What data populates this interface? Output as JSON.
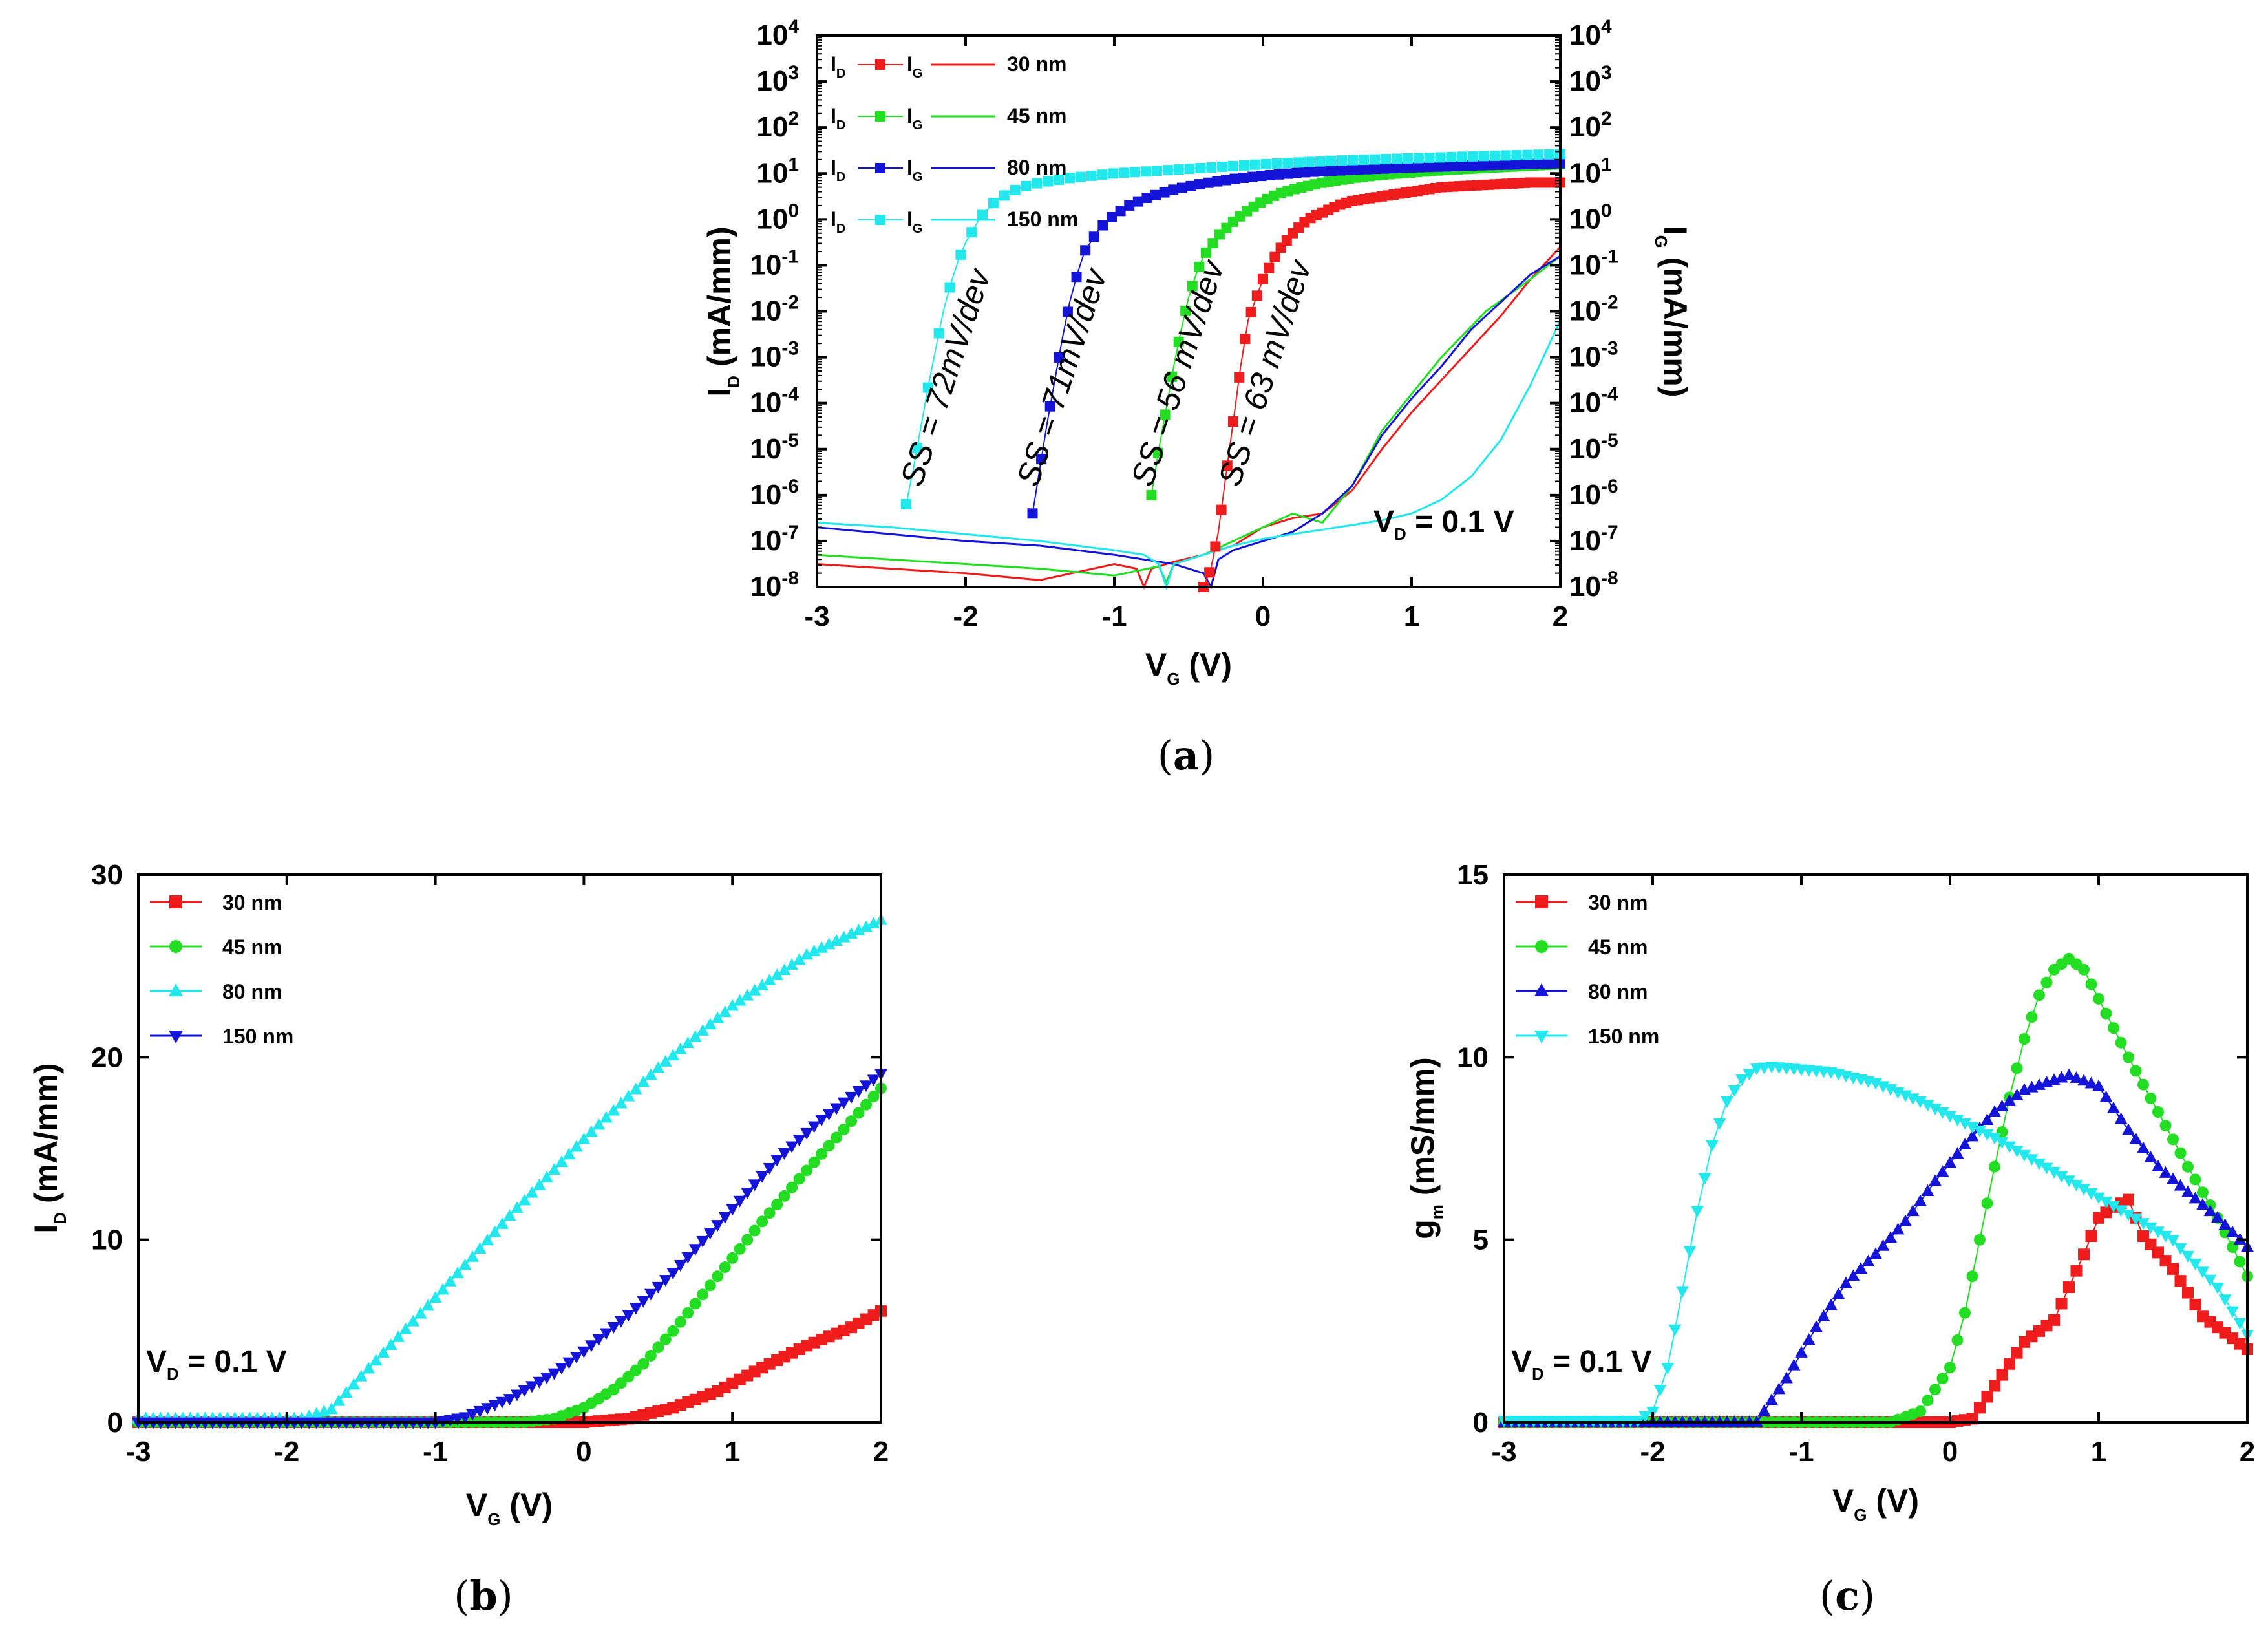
{
  "colors": {
    "red": "#ee1c1c",
    "green": "#22dd22",
    "blue": "#1414d8",
    "cyan": "#22e8ee"
  },
  "chart_data": [
    {
      "id": "a",
      "caption": "a",
      "type": "line",
      "scale": "log",
      "xlabel_main": "V",
      "xlabel_sub": "G",
      "xlabel_unit": " (V)",
      "ylabel_main": "I",
      "ylabel_sub": "D",
      "ylabel_unit": " (mA/mm)",
      "y2label_main": "I",
      "y2label_sub": "G",
      "y2label_unit": " (mA/mm)",
      "xlim": [
        -3,
        2
      ],
      "ylim_exp": [
        -8,
        4
      ],
      "xticks": [
        "-3",
        "-2",
        "-1",
        "0",
        "1",
        "2"
      ],
      "yticks_exp": [
        "-8",
        "-7",
        "-6",
        "-5",
        "-4",
        "-3",
        "-2",
        "-1",
        "0",
        "1",
        "2",
        "3",
        "4"
      ],
      "ytick_base": "10",
      "legend": {
        "id_main": "I",
        "id_sub": "D",
        "ig_main": "I",
        "ig_sub": "G",
        "entries": [
          "30 nm",
          "45 nm",
          "80 nm",
          "150 nm"
        ]
      },
      "annotation": {
        "main": "V",
        "sub": "D",
        "rest": " = 0.1 V"
      },
      "ss_labels": [
        "SS = 72mV/dev",
        "SS = 71mV/dev",
        "SS = 56 mV/dev",
        "SS = 63 mV/dev"
      ],
      "series_id": [
        {
          "name": "30 nm",
          "color": "red",
          "x": [
            -0.4,
            -0.35,
            -0.3,
            -0.25,
            -0.2,
            -0.15,
            -0.1,
            0.0,
            0.1,
            0.2,
            0.3,
            0.4,
            0.5,
            0.6,
            0.8,
            1.0,
            1.2,
            1.5,
            1.8,
            2.0
          ],
          "logy": [
            -8.0,
            -7.6,
            -6.8,
            -5.6,
            -4.4,
            -3.2,
            -2.2,
            -1.3,
            -0.7,
            -0.3,
            0.0,
            0.15,
            0.3,
            0.4,
            0.5,
            0.6,
            0.7,
            0.75,
            0.8,
            0.8
          ]
        },
        {
          "name": "45 nm",
          "color": "green",
          "x": [
            -0.75,
            -0.7,
            -0.65,
            -0.6,
            -0.55,
            -0.5,
            -0.45,
            -0.4,
            -0.3,
            -0.2,
            -0.1,
            0.0,
            0.1,
            0.2,
            0.4,
            0.6,
            0.8,
            1.0,
            1.2,
            1.5,
            2.0
          ],
          "logy": [
            -6.0,
            -5.0,
            -4.1,
            -3.2,
            -2.4,
            -1.7,
            -1.2,
            -0.8,
            -0.35,
            -0.05,
            0.2,
            0.4,
            0.55,
            0.65,
            0.8,
            0.9,
            0.97,
            1.02,
            1.07,
            1.12,
            1.2
          ]
        },
        {
          "name": "80 nm",
          "color": "blue",
          "x": [
            -1.55,
            -1.5,
            -1.45,
            -1.4,
            -1.35,
            -1.3,
            -1.25,
            -1.2,
            -1.1,
            -1.0,
            -0.9,
            -0.8,
            -0.6,
            -0.4,
            -0.2,
            0.0,
            0.3,
            0.6,
            1.0,
            1.5,
            2.0
          ],
          "logy": [
            -6.4,
            -5.4,
            -4.4,
            -3.5,
            -2.6,
            -1.8,
            -1.2,
            -0.7,
            -0.2,
            0.1,
            0.3,
            0.45,
            0.65,
            0.78,
            0.88,
            0.95,
            1.03,
            1.08,
            1.13,
            1.18,
            1.22
          ]
        },
        {
          "name": "150 nm",
          "color": "cyan",
          "x": [
            -2.4,
            -2.35,
            -2.3,
            -2.25,
            -2.2,
            -2.15,
            -2.1,
            -2.05,
            -2.0,
            -1.9,
            -1.8,
            -1.7,
            -1.6,
            -1.5,
            -1.3,
            -1.0,
            -0.5,
            0.0,
            0.5,
            1.0,
            1.5,
            2.0
          ],
          "logy": [
            -6.2,
            -5.4,
            -4.5,
            -3.6,
            -2.8,
            -2.0,
            -1.4,
            -0.9,
            -0.5,
            0.05,
            0.4,
            0.6,
            0.72,
            0.8,
            0.9,
            1.0,
            1.1,
            1.2,
            1.28,
            1.33,
            1.38,
            1.42
          ]
        }
      ],
      "series_ig": [
        {
          "name": "30 nm",
          "color": "red",
          "x": [
            -3.0,
            -2.5,
            -2.0,
            -1.5,
            -1.0,
            -0.85,
            -0.8,
            -0.75,
            -0.6,
            -0.4,
            -0.2,
            0.0,
            0.2,
            0.4,
            0.6,
            0.8,
            1.0,
            1.2,
            1.4,
            1.6,
            1.8,
            2.0
          ],
          "logy": [
            -7.5,
            -7.6,
            -7.7,
            -7.85,
            -7.5,
            -7.6,
            -8.0,
            -7.6,
            -7.45,
            -7.3,
            -7.1,
            -6.7,
            -6.5,
            -6.4,
            -5.9,
            -5.0,
            -4.2,
            -3.5,
            -2.8,
            -2.1,
            -1.3,
            -0.6
          ]
        },
        {
          "name": "45 nm",
          "color": "green",
          "x": [
            -3.0,
            -2.5,
            -2.0,
            -1.5,
            -1.0,
            -0.7,
            -0.65,
            -0.6,
            -0.4,
            -0.2,
            0.0,
            0.2,
            0.4,
            0.6,
            0.8,
            1.0,
            1.2,
            1.5,
            1.8,
            2.0
          ],
          "logy": [
            -7.3,
            -7.4,
            -7.5,
            -7.6,
            -7.75,
            -7.55,
            -7.9,
            -7.5,
            -7.3,
            -7.0,
            -6.7,
            -6.4,
            -6.6,
            -5.8,
            -4.6,
            -3.8,
            -3.0,
            -2.0,
            -1.3,
            -0.8
          ]
        },
        {
          "name": "80 nm",
          "color": "blue",
          "x": [
            -3.0,
            -2.5,
            -2.0,
            -1.5,
            -1.0,
            -0.6,
            -0.4,
            -0.35,
            -0.3,
            -0.2,
            0.0,
            0.2,
            0.4,
            0.6,
            0.8,
            1.0,
            1.2,
            1.4,
            1.6,
            1.8,
            2.0
          ],
          "logy": [
            -6.7,
            -6.85,
            -7.0,
            -7.1,
            -7.3,
            -7.5,
            -7.7,
            -8.0,
            -7.4,
            -7.2,
            -7.0,
            -6.8,
            -6.4,
            -5.8,
            -4.7,
            -3.9,
            -3.2,
            -2.4,
            -1.8,
            -1.2,
            -0.8
          ]
        },
        {
          "name": "150 nm",
          "color": "cyan",
          "x": [
            -3.0,
            -2.5,
            -2.0,
            -1.5,
            -1.0,
            -0.8,
            -0.7,
            -0.65,
            -0.6,
            -0.4,
            -0.2,
            0.0,
            0.2,
            0.5,
            0.8,
            1.0,
            1.2,
            1.4,
            1.6,
            1.8,
            2.0
          ],
          "logy": [
            -6.6,
            -6.7,
            -6.85,
            -7.0,
            -7.2,
            -7.3,
            -7.5,
            -8.0,
            -7.5,
            -7.3,
            -7.1,
            -6.95,
            -6.85,
            -6.7,
            -6.55,
            -6.4,
            -6.1,
            -5.6,
            -4.8,
            -3.6,
            -2.2
          ]
        }
      ]
    },
    {
      "id": "b",
      "caption": "b",
      "type": "line",
      "xlabel_main": "V",
      "xlabel_sub": "G",
      "xlabel_unit": " (V)",
      "ylabel_main": "I",
      "ylabel_sub": "D",
      "ylabel_unit": " (mA/mm)",
      "xlim": [
        -3,
        2
      ],
      "ylim": [
        0,
        30
      ],
      "xticks": [
        "-3",
        "-2",
        "-1",
        "0",
        "1",
        "2"
      ],
      "yticks": [
        "0",
        "10",
        "20",
        "30"
      ],
      "annotation": {
        "main": "V",
        "sub": "D",
        "rest": " = 0.1 V"
      },
      "series": [
        {
          "name": "30 nm",
          "color": "red",
          "marker": "square",
          "x": [
            -3.0,
            0.0,
            0.3,
            0.6,
            0.9,
            1.2,
            1.5,
            1.8,
            2.0
          ],
          "y": [
            0,
            0,
            0.2,
            0.8,
            1.7,
            3.0,
            4.2,
            5.2,
            6.1
          ]
        },
        {
          "name": "45 nm",
          "color": "green",
          "marker": "circle",
          "x": [
            -3.0,
            -0.4,
            -0.2,
            0.0,
            0.2,
            0.4,
            0.6,
            0.8,
            1.0,
            1.2,
            1.5,
            1.8,
            2.0
          ],
          "y": [
            0,
            0,
            0.2,
            0.8,
            1.8,
            3.2,
            5.0,
            7.0,
            9.0,
            11.0,
            13.8,
            16.5,
            18.3
          ]
        },
        {
          "name": "80 nm",
          "color": "cyan",
          "marker": "triangle-up",
          "x": [
            -3.0,
            -1.9,
            -1.7,
            -1.5,
            -1.0,
            -0.5,
            0.0,
            0.5,
            1.0,
            1.5,
            2.0
          ],
          "y": [
            0.2,
            0.2,
            0.7,
            2.5,
            6.8,
            11.3,
            15.5,
            19.4,
            22.8,
            25.6,
            27.5
          ]
        },
        {
          "name": "150 nm",
          "color": "blue",
          "marker": "triangle-down",
          "x": [
            -3.0,
            -1.0,
            -0.8,
            -0.5,
            -0.2,
            0.0,
            0.3,
            0.6,
            1.0,
            1.3,
            1.6,
            2.0
          ],
          "y": [
            0,
            0,
            0.3,
            1.3,
            2.7,
            3.9,
            5.9,
            8.2,
            11.7,
            14.4,
            16.6,
            19.1
          ]
        }
      ]
    },
    {
      "id": "c",
      "caption": "c",
      "type": "line",
      "xlabel_main": "V",
      "xlabel_sub": "G",
      "xlabel_unit": " (V)",
      "ylabel_main": "g",
      "ylabel_sub": "m",
      "ylabel_unit": " (mS/mm)",
      "xlim": [
        -3,
        2
      ],
      "ylim": [
        0,
        15
      ],
      "xticks": [
        "-3",
        "-2",
        "-1",
        "0",
        "1",
        "2"
      ],
      "yticks": [
        "0",
        "5",
        "10",
        "15"
      ],
      "annotation": {
        "main": "V",
        "sub": "D",
        "rest": " = 0.1 V"
      },
      "series": [
        {
          "name": "30 nm",
          "color": "red",
          "marker": "square",
          "x": [
            -3.0,
            0.0,
            0.15,
            0.3,
            0.5,
            0.7,
            0.9,
            1.0,
            1.1,
            1.2,
            1.3,
            1.5,
            1.7,
            1.9,
            2.0
          ],
          "y": [
            0,
            0,
            0.1,
            1.0,
            2.2,
            2.8,
            4.6,
            5.6,
            5.9,
            6.1,
            5.1,
            4.2,
            2.9,
            2.3,
            2.0
          ]
        },
        {
          "name": "45 nm",
          "color": "green",
          "marker": "circle",
          "x": [
            -3.0,
            -0.4,
            -0.2,
            0.0,
            0.1,
            0.2,
            0.3,
            0.4,
            0.5,
            0.6,
            0.7,
            0.8,
            0.9,
            1.0,
            1.2,
            1.4,
            1.6,
            1.8,
            2.0
          ],
          "y": [
            0,
            0,
            0.3,
            1.5,
            3.0,
            5.0,
            7.0,
            8.9,
            10.5,
            11.7,
            12.4,
            12.7,
            12.4,
            11.6,
            10.0,
            8.5,
            7.0,
            5.6,
            4.0
          ]
        },
        {
          "name": "80 nm",
          "color": "blue",
          "marker": "triangle-up",
          "x": [
            -3.0,
            -1.3,
            -1.1,
            -0.9,
            -0.7,
            -0.5,
            -0.3,
            -0.1,
            0.1,
            0.3,
            0.5,
            0.8,
            1.0,
            1.2,
            1.4,
            1.6,
            1.8,
            2.0
          ],
          "y": [
            0,
            0,
            1.2,
            2.6,
            3.8,
            4.6,
            5.5,
            6.6,
            7.6,
            8.5,
            9.1,
            9.5,
            9.2,
            8.0,
            7.0,
            6.3,
            5.6,
            4.8
          ]
        },
        {
          "name": "150 nm",
          "color": "cyan",
          "marker": "triangle-down",
          "x": [
            -3.0,
            -2.1,
            -2.0,
            -1.9,
            -1.8,
            -1.7,
            -1.6,
            -1.5,
            -1.4,
            -1.3,
            -1.2,
            -0.8,
            -0.5,
            -0.2,
            0.0,
            0.3,
            0.6,
            0.9,
            1.2,
            1.5,
            1.8,
            2.0
          ],
          "y": [
            0.05,
            0.05,
            0.3,
            1.5,
            3.6,
            5.8,
            7.6,
            8.8,
            9.4,
            9.7,
            9.75,
            9.6,
            9.3,
            8.8,
            8.4,
            7.8,
            7.1,
            6.4,
            5.7,
            5.0,
            3.7,
            2.4
          ]
        }
      ]
    }
  ]
}
